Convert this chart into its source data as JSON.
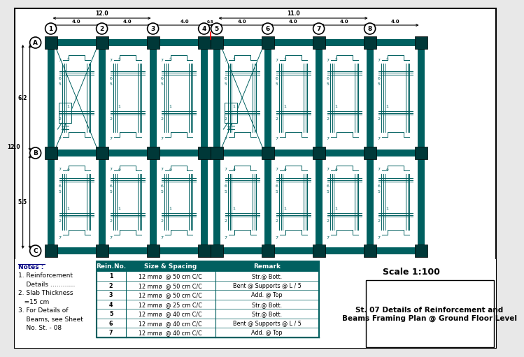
{
  "bg_color": "#e8e8e8",
  "drawing_bg": "#ffffff",
  "teal": "#006060",
  "dark_teal": "#003838",
  "title": "St. 07 Details of Reinforcement and\nBeams Framing Plan @ Ground Floor Level",
  "scale": "Scale 1:100",
  "notes": [
    "Notes :",
    "1. Reinforcement",
    "    Details …………",
    "2. Slab Thickness",
    "   =15 cm",
    "3. For Details of",
    "    Beams, see Sheet",
    "    No. St. - 08"
  ],
  "table_headers": [
    "Rein.No.",
    "Size & Spacing",
    "Remark"
  ],
  "table_rows": [
    [
      "1",
      "12 mmø  @ 50 cm C/C",
      "Str.@ Bott."
    ],
    [
      "2",
      "12 mmø  @ 50 cm C/C",
      "Bent @ Supports @ L / 5"
    ],
    [
      "3",
      "12 mmø  @ 50 cm C/C",
      "Add. @ Top"
    ],
    [
      "4",
      "12 mmø  @ 25 cm C/C",
      "Str.@ Bott."
    ],
    [
      "5",
      "12 mmø  @ 40 cm C/C",
      "Str.@ Bott."
    ],
    [
      "6",
      "12 mmø  @ 40 cm C/C",
      "Bent @ Supports @ L / 5"
    ],
    [
      "7",
      "12 mmø  @ 40 cm C/C",
      "Add. @ Top"
    ]
  ],
  "col_labels": [
    "1",
    "2",
    "3",
    "4",
    "5",
    "6",
    "7",
    "8"
  ],
  "row_labels": [
    "A",
    "B",
    "C"
  ]
}
